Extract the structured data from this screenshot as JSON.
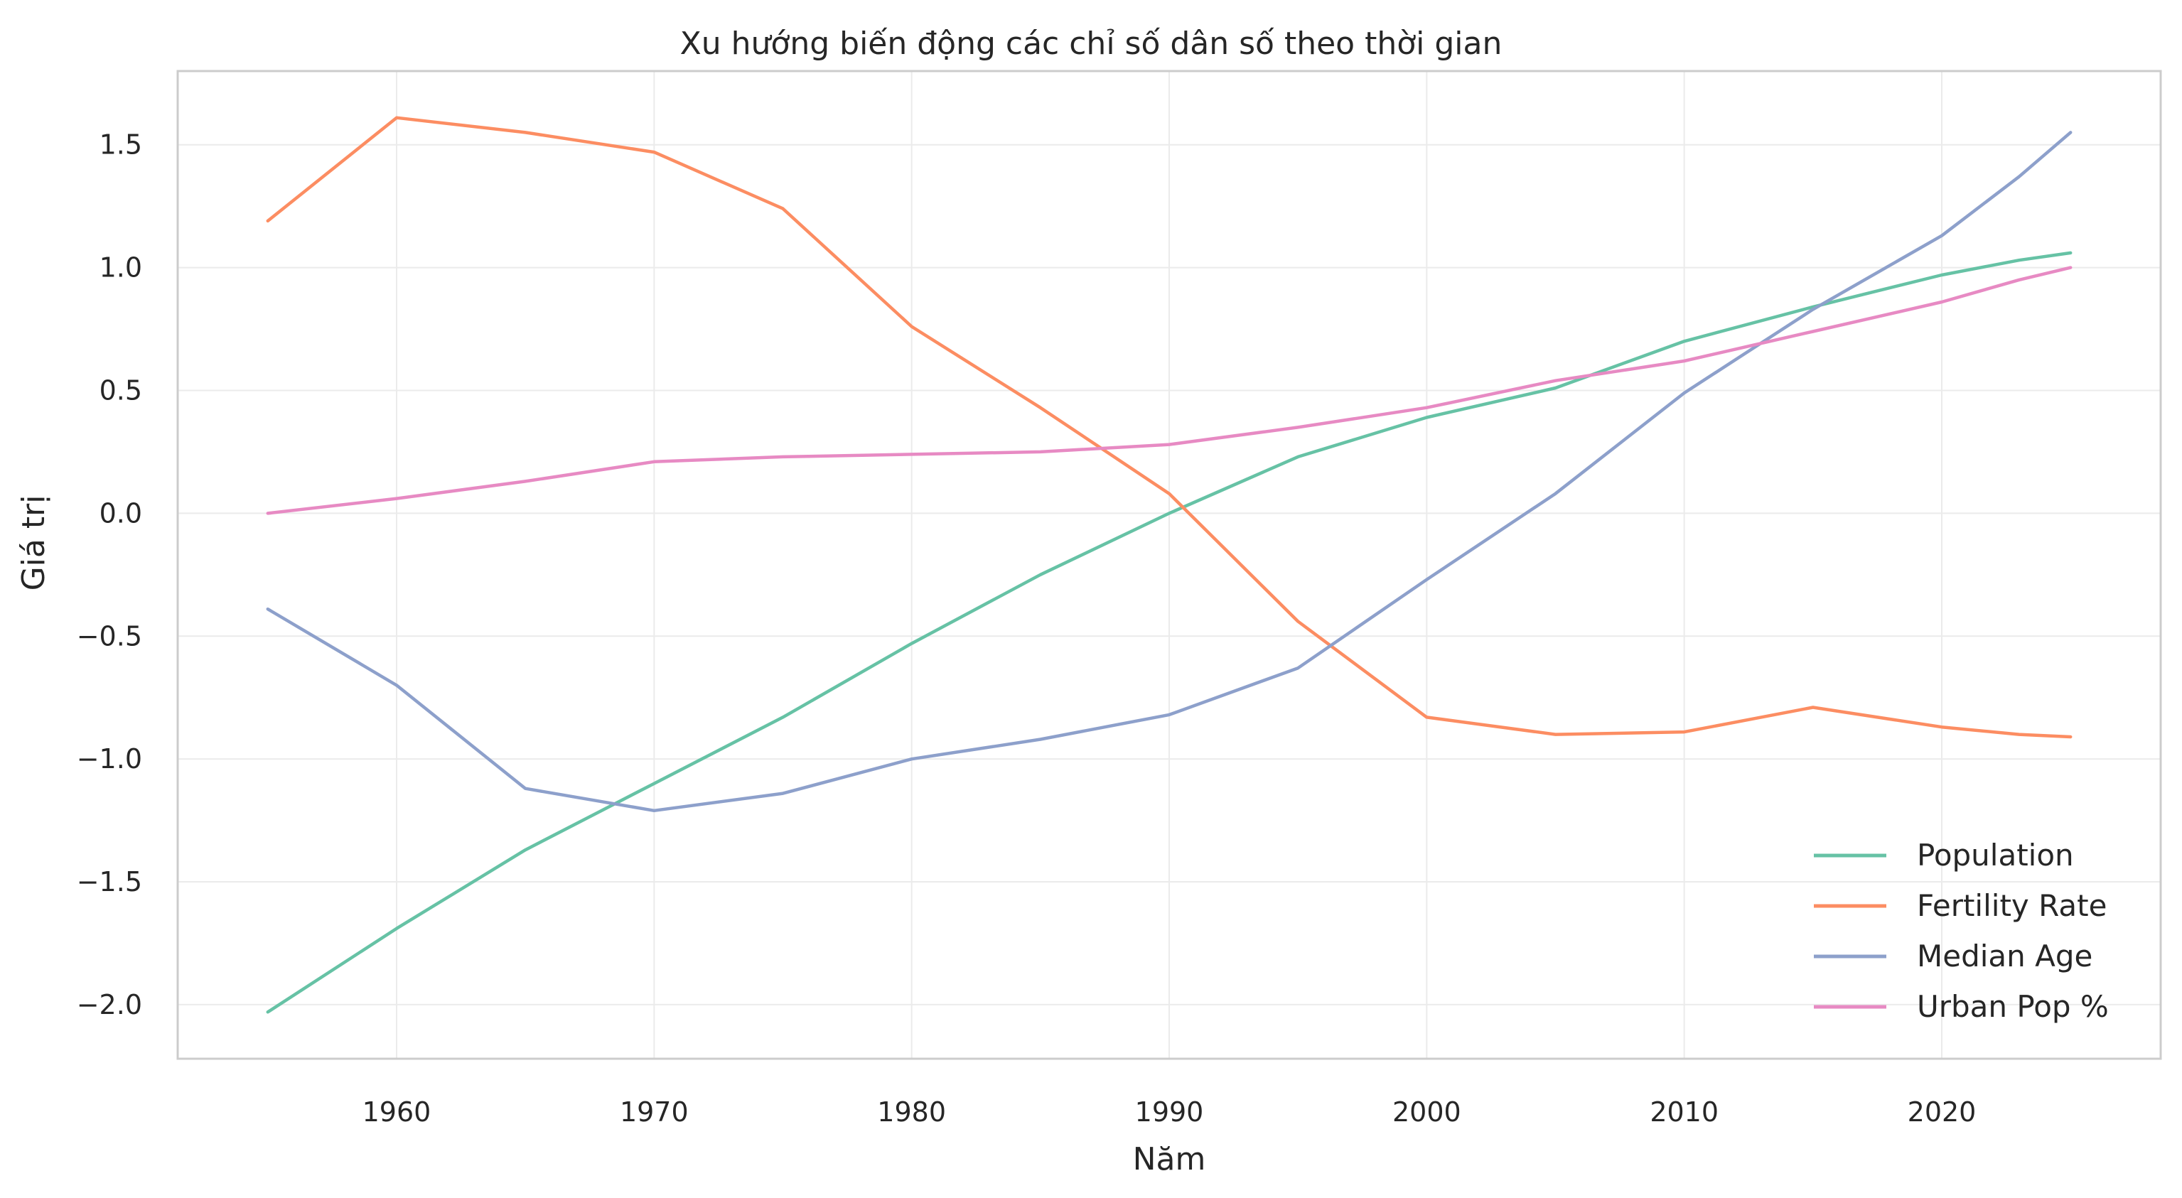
{
  "chart_data": {
    "type": "line",
    "title": "Xu hướng biến động các chỉ số dân số theo thời gian",
    "xlabel": "Năm",
    "ylabel": "Giá trị",
    "xlim": [
      1951.5,
      2028.5
    ],
    "ylim": [
      -2.22,
      1.8
    ],
    "x_ticks": [
      1960,
      1970,
      1980,
      1990,
      2000,
      2010,
      2020
    ],
    "y_ticks": [
      -2.0,
      -1.5,
      -1.0,
      -0.5,
      0.0,
      0.5,
      1.0,
      1.5
    ],
    "y_tick_labels": [
      "−2.0",
      "−1.5",
      "−1.0",
      "−0.5",
      "0.0",
      "0.5",
      "1.0",
      "1.5"
    ],
    "grid": true,
    "legend_position": "lower-right",
    "x": [
      1955,
      1960,
      1965,
      1970,
      1975,
      1980,
      1985,
      1990,
      1995,
      2000,
      2005,
      2010,
      2015,
      2020,
      2023,
      2025
    ],
    "series": [
      {
        "name": "Population",
        "color": "#66c2a5",
        "values": [
          -2.03,
          -1.69,
          -1.37,
          -1.1,
          -0.83,
          -0.53,
          -0.25,
          0.0,
          0.23,
          0.39,
          0.51,
          0.7,
          0.84,
          0.97,
          1.03,
          1.06
        ]
      },
      {
        "name": "Fertility Rate",
        "color": "#fc8d62",
        "values": [
          1.19,
          1.61,
          1.55,
          1.47,
          1.24,
          0.76,
          0.43,
          0.08,
          -0.44,
          -0.83,
          -0.9,
          -0.89,
          -0.79,
          -0.87,
          -0.9,
          -0.91
        ]
      },
      {
        "name": "Median Age",
        "color": "#8da0cb",
        "values": [
          -0.39,
          -0.7,
          -1.12,
          -1.21,
          -1.14,
          -1.0,
          -0.92,
          -0.82,
          -0.63,
          -0.27,
          0.08,
          0.49,
          0.83,
          1.13,
          1.37,
          1.55
        ]
      },
      {
        "name": "Urban Pop %",
        "color": "#e78ac3",
        "values": [
          0.0,
          0.06,
          0.13,
          0.21,
          0.23,
          0.24,
          0.25,
          0.28,
          0.35,
          0.43,
          0.54,
          0.62,
          0.74,
          0.86,
          0.95,
          1.0
        ]
      }
    ]
  }
}
